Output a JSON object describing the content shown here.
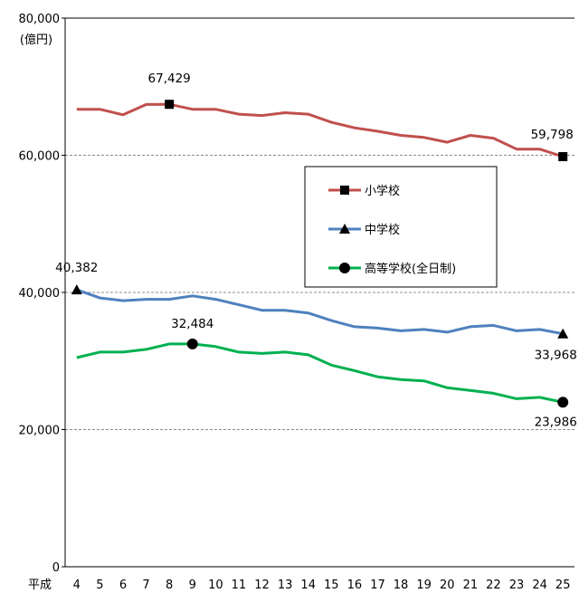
{
  "chart_data": {
    "type": "line",
    "ylabel": "(億円)",
    "x_prefix": "平成",
    "x": [
      "4",
      "5",
      "6",
      "7",
      "8",
      "9",
      "10",
      "11",
      "12",
      "13",
      "14",
      "15",
      "16",
      "17",
      "18",
      "19",
      "20",
      "21",
      "22",
      "23",
      "24",
      "25"
    ],
    "ylim": [
      0,
      80000
    ],
    "yticks": [
      0,
      20000,
      40000,
      60000,
      80000
    ],
    "ytick_labels": [
      "0",
      "20,000",
      "40,000",
      "60,000",
      "80,000"
    ],
    "grid": "dashed at 20,000 / 40,000 / 60,000",
    "legend_position": "right",
    "series": [
      {
        "name": "小学校",
        "color": "#c0504d",
        "marker": "square",
        "values": [
          66700,
          66700,
          65900,
          67400,
          67429,
          66700,
          66700,
          66000,
          65800,
          66200,
          66000,
          64800,
          64000,
          63500,
          62900,
          62600,
          61900,
          62900,
          62500,
          60900,
          60900,
          59798
        ],
        "labels": [
          {
            "index": 4,
            "text": "67,429"
          },
          {
            "index": 21,
            "text": "59,798"
          }
        ]
      },
      {
        "name": "中学校",
        "color": "#4f81bd",
        "marker": "triangle",
        "values": [
          40382,
          39200,
          38800,
          39000,
          39000,
          39500,
          39000,
          38200,
          37400,
          37400,
          37000,
          35900,
          35000,
          34800,
          34400,
          34600,
          34200,
          35000,
          35200,
          34400,
          34600,
          33968
        ],
        "labels": [
          {
            "index": 0,
            "text": "40,382"
          },
          {
            "index": 21,
            "text": "33,968"
          }
        ]
      },
      {
        "name": "高等学校(全日制)",
        "color": "#00b050",
        "marker": "circle",
        "values": [
          30500,
          31300,
          31300,
          31700,
          32484,
          32484,
          32100,
          31300,
          31100,
          31300,
          30900,
          29400,
          28600,
          27700,
          27300,
          27100,
          26100,
          25700,
          25300,
          24500,
          24700,
          23986
        ],
        "labels": [
          {
            "index": 5,
            "text": "32,484"
          },
          {
            "index": 21,
            "text": "23,986"
          }
        ]
      }
    ]
  }
}
